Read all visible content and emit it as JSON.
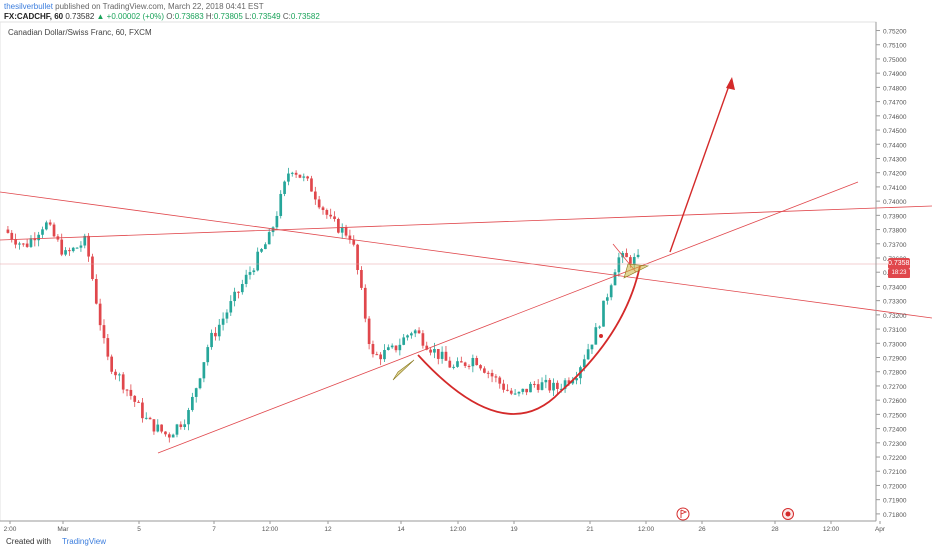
{
  "header": {
    "author": "thesilverbullet",
    "published": "published on TradingView.com, March 22, 2018 04:41 EST",
    "symbol": "FX:CADCHF, 60",
    "last": "0.73582",
    "change": "▲ +0.00002 (+0%)",
    "o_label": "O:",
    "o_value": "0.73683",
    "h_label": "H:",
    "h_value": "0.73805",
    "l_label": "L:",
    "l_value": "0.73549",
    "c_label": "C:",
    "c_value": "0.73582"
  },
  "chart_data": {
    "type": "candlestick",
    "title": "Canadian Dollar/Swiss Franc, 60, FXCM",
    "ylim": [
      0.7175,
      0.7526
    ],
    "y_ticks": [
      "0.75200",
      "0.75100",
      "0.75000",
      "0.74900",
      "0.74800",
      "0.74700",
      "0.74600",
      "0.74500",
      "0.74400",
      "0.74300",
      "0.74200",
      "0.74100",
      "0.74000",
      "0.73900",
      "0.73800",
      "0.73700",
      "0.73600",
      "0.73500",
      "0.73400",
      "0.73300",
      "0.73200",
      "0.73100",
      "0.73000",
      "0.72900",
      "0.72800",
      "0.72700",
      "0.72600",
      "0.72500",
      "0.72400",
      "0.72300",
      "0.72200",
      "0.72100",
      "0.72000",
      "0.71900",
      "0.71800"
    ],
    "x_ticks": [
      "2:00",
      "Mar",
      "5",
      "7",
      "12:00",
      "12",
      "14",
      "12:00",
      "19",
      "21",
      "12:00",
      "26",
      "28",
      "12:00",
      "Apr"
    ],
    "last_price": "0.73582",
    "countdown": "18:23",
    "close_path": [
      {
        "t": "Feb 28 12:00",
        "close": 0.738
      },
      {
        "t": "Mar 1",
        "close": 0.7368
      },
      {
        "t": "Mar 1 12:00",
        "close": 0.7385
      },
      {
        "t": "Mar 2",
        "close": 0.7362
      },
      {
        "t": "Mar 2 12:00",
        "close": 0.7372
      },
      {
        "t": "Mar 5",
        "close": 0.729
      },
      {
        "t": "Mar 5 12:00",
        "close": 0.7268
      },
      {
        "t": "Mar 6",
        "close": 0.7245
      },
      {
        "t": "Mar 6 12:00",
        "close": 0.7235
      },
      {
        "t": "Mar 7",
        "close": 0.725
      },
      {
        "t": "Mar 7 12:00",
        "close": 0.73
      },
      {
        "t": "Mar 8",
        "close": 0.7325
      },
      {
        "t": "Mar 8 12:00",
        "close": 0.735
      },
      {
        "t": "Mar 9",
        "close": 0.7375
      },
      {
        "t": "Mar 9 12:00",
        "close": 0.7425
      },
      {
        "t": "Mar 12",
        "close": 0.741
      },
      {
        "t": "Mar 12 12:00",
        "close": 0.7385
      },
      {
        "t": "Mar 13",
        "close": 0.7375
      },
      {
        "t": "Mar 13 12:00",
        "close": 0.729
      },
      {
        "t": "Mar 14",
        "close": 0.7295
      },
      {
        "t": "Mar 14 12:00",
        "close": 0.731
      },
      {
        "t": "Mar 15",
        "close": 0.7295
      },
      {
        "t": "Mar 15 12:00",
        "close": 0.7282
      },
      {
        "t": "Mar 16",
        "close": 0.729
      },
      {
        "t": "Mar 16 12:00",
        "close": 0.7275
      },
      {
        "t": "Mar 19",
        "close": 0.7262
      },
      {
        "t": "Mar 19 12:00",
        "close": 0.7272
      },
      {
        "t": "Mar 20",
        "close": 0.7268
      },
      {
        "t": "Mar 20 12:00",
        "close": 0.728
      },
      {
        "t": "Mar 21",
        "close": 0.731
      },
      {
        "t": "Mar 21 12:00",
        "close": 0.736
      },
      {
        "t": "Mar 22",
        "close": 0.7358
      }
    ],
    "up_color": "#26a69a",
    "down_color": "#e0474c",
    "drawing_color": "#e0474c",
    "highlight_color": "#c9b23a"
  },
  "footer": {
    "created": "Created with",
    "brand": "TradingView"
  },
  "event_icons": [
    "flag-icon",
    "target-icon"
  ]
}
